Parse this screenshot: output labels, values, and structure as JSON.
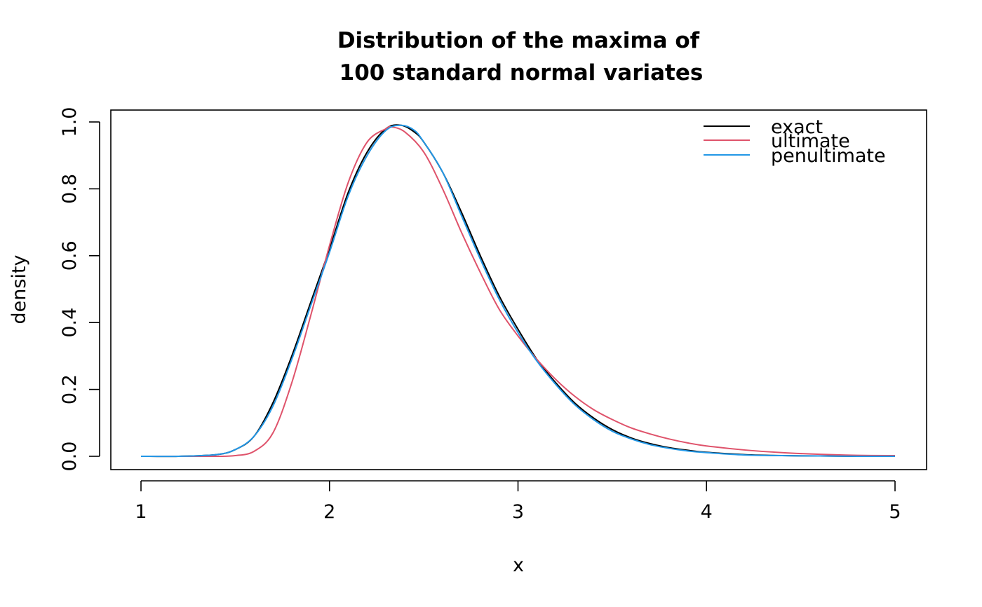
{
  "chart_data": {
    "type": "line",
    "title_line1": "Distribution of the maxima of",
    "title_line2": "100 standard normal variates",
    "xlabel": "x",
    "ylabel": "density",
    "xlim": [
      1,
      5
    ],
    "ylim": [
      0,
      1.0
    ],
    "x_ticks": [
      1,
      2,
      3,
      4,
      5
    ],
    "x_tick_labels": [
      "1",
      "2",
      "3",
      "4",
      "5"
    ],
    "y_ticks": [
      0,
      0.2,
      0.4,
      0.6,
      0.8,
      1.0
    ],
    "y_tick_labels": [
      "0.0",
      "0.2",
      "0.4",
      "0.6",
      "0.8",
      "1.0"
    ],
    "legend_position": "top-right",
    "series": [
      {
        "name": "exact",
        "color": "#000000",
        "x": [
          1.0,
          1.2,
          1.4,
          1.5,
          1.6,
          1.7,
          1.8,
          1.9,
          2.0,
          2.1,
          2.2,
          2.3,
          2.38,
          2.45,
          2.5,
          2.6,
          2.7,
          2.8,
          2.9,
          3.0,
          3.1,
          3.2,
          3.3,
          3.4,
          3.5,
          3.6,
          3.7,
          3.8,
          3.9,
          4.0,
          4.2,
          4.4,
          4.6,
          4.8,
          5.0
        ],
        "y": [
          0.0,
          0.0,
          0.005,
          0.02,
          0.06,
          0.16,
          0.3,
          0.46,
          0.62,
          0.79,
          0.91,
          0.98,
          0.99,
          0.97,
          0.94,
          0.85,
          0.73,
          0.6,
          0.48,
          0.38,
          0.29,
          0.22,
          0.16,
          0.115,
          0.08,
          0.055,
          0.038,
          0.026,
          0.018,
          0.012,
          0.005,
          0.002,
          0.001,
          0.0,
          0.0
        ]
      },
      {
        "name": "ultimate",
        "color": "#df536b",
        "x": [
          1.0,
          1.2,
          1.4,
          1.5,
          1.6,
          1.7,
          1.8,
          1.9,
          2.0,
          2.1,
          2.2,
          2.3,
          2.33,
          2.4,
          2.5,
          2.6,
          2.7,
          2.8,
          2.9,
          3.0,
          3.1,
          3.2,
          3.3,
          3.4,
          3.5,
          3.6,
          3.7,
          3.8,
          3.9,
          4.0,
          4.2,
          4.4,
          4.6,
          4.8,
          5.0
        ],
        "y": [
          0.0,
          0.0,
          0.0,
          0.002,
          0.015,
          0.07,
          0.22,
          0.42,
          0.63,
          0.82,
          0.94,
          0.98,
          0.985,
          0.97,
          0.91,
          0.8,
          0.67,
          0.55,
          0.44,
          0.36,
          0.29,
          0.23,
          0.18,
          0.14,
          0.11,
          0.085,
          0.067,
          0.052,
          0.04,
          0.031,
          0.019,
          0.011,
          0.006,
          0.003,
          0.002
        ]
      },
      {
        "name": "penultimate",
        "color": "#2297e6",
        "x": [
          1.0,
          1.2,
          1.4,
          1.5,
          1.6,
          1.7,
          1.8,
          1.9,
          2.0,
          2.1,
          2.2,
          2.3,
          2.38,
          2.45,
          2.5,
          2.6,
          2.7,
          2.8,
          2.9,
          3.0,
          3.1,
          3.2,
          3.3,
          3.4,
          3.5,
          3.6,
          3.7,
          3.8,
          3.9,
          4.0,
          4.2,
          4.4,
          4.6,
          4.8,
          5.0
        ],
        "y": [
          0.0,
          0.0,
          0.005,
          0.02,
          0.06,
          0.15,
          0.29,
          0.45,
          0.61,
          0.78,
          0.9,
          0.975,
          0.99,
          0.975,
          0.94,
          0.85,
          0.72,
          0.59,
          0.47,
          0.37,
          0.285,
          0.215,
          0.155,
          0.11,
          0.075,
          0.052,
          0.035,
          0.024,
          0.016,
          0.011,
          0.004,
          0.002,
          0.001,
          0.0,
          0.0
        ]
      }
    ]
  }
}
